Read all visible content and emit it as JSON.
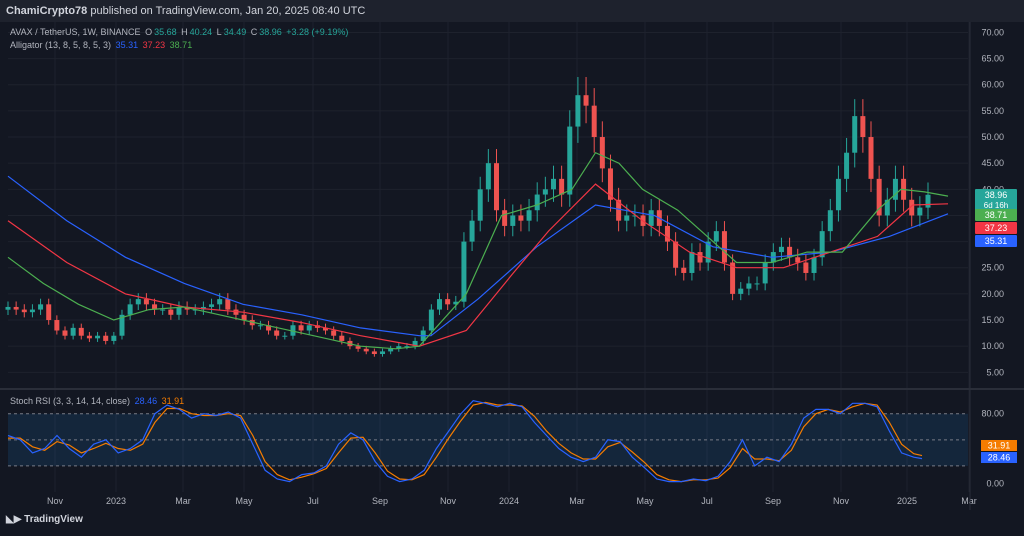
{
  "header": {
    "author": "ChamiCrypto78",
    "published_text": "published on TradingView.com, Jan 20, 2025 08:40 UTC"
  },
  "symbol_line": {
    "symbol": "AVAX / TetherUS, 1W, BINANCE",
    "open_label": "O",
    "open": "35.68",
    "high_label": "H",
    "high": "40.24",
    "low_label": "L",
    "low": "34.49",
    "close_label": "C",
    "close": "38.96",
    "change": "+3.28 (+9.19%)"
  },
  "alligator": {
    "label": "Alligator (13, 8, 5, 8, 5, 3)",
    "jaw": "35.31",
    "teeth": "37.23",
    "lips": "38.71"
  },
  "stoch": {
    "label": "Stoch RSI (3, 3, 14, 14, close)",
    "k": "28.46",
    "d": "31.91"
  },
  "footer": {
    "brand": "TradingView"
  },
  "colors": {
    "up": "#26a69a",
    "down": "#ef5350",
    "jaw": "#2962ff",
    "teeth": "#f23645",
    "lips": "#4caf50",
    "k": "#2962ff",
    "d": "#f57c00",
    "bg": "#131722"
  },
  "chart_data": [
    {
      "type": "candlestick",
      "title": "AVAX / TetherUS, 1W, BINANCE",
      "x_ticks": [
        "Nov",
        "2023",
        "Mar",
        "May",
        "Jul",
        "Sep",
        "Nov",
        "2024",
        "Mar",
        "May",
        "Jul",
        "Sep",
        "Nov",
        "2025",
        "Mar"
      ],
      "y_ticks": [
        "70.00",
        "65.00",
        "60.00",
        "55.00",
        "50.00",
        "45.00",
        "40.00",
        "35.00",
        "30.00",
        "25.00",
        "20.00",
        "15.00",
        "10.00",
        "5.00"
      ],
      "ylim": [
        2,
        72
      ],
      "price_labels": [
        {
          "text": "38.96",
          "sub": "6d 16h",
          "color": "#26a69a"
        },
        {
          "text": "38.71",
          "color": "#4caf50"
        },
        {
          "text": "37.23",
          "color": "#f23645"
        },
        {
          "text": "35.31",
          "color": "#2962ff"
        }
      ],
      "closes": [
        17.5,
        17,
        16.5,
        17,
        18,
        15,
        13,
        12,
        13.5,
        12,
        11.5,
        12,
        11,
        12,
        16,
        18,
        19,
        18,
        17,
        17,
        16,
        17.5,
        17,
        17,
        17.5,
        18,
        19,
        17,
        16,
        15,
        14,
        14,
        13,
        12,
        12,
        14,
        13,
        14,
        13.5,
        13,
        12,
        11,
        10,
        9.5,
        9,
        8.5,
        9,
        9.5,
        10,
        10,
        11,
        13,
        17,
        19,
        18,
        18.5,
        30,
        34,
        40,
        45,
        36,
        33,
        35,
        34,
        36,
        39,
        40,
        42,
        39,
        52,
        58,
        56,
        50,
        44,
        38,
        34,
        35,
        35,
        33,
        36,
        33,
        30,
        25,
        24,
        28,
        26,
        30,
        32,
        26,
        20,
        21,
        22,
        22,
        26,
        28,
        29,
        27,
        26,
        24,
        27,
        32,
        36,
        42,
        47,
        54,
        50,
        42,
        35,
        38,
        42,
        38,
        35,
        36.5,
        38.96
      ],
      "jaw": [
        [
          0,
          42.5
        ],
        [
          10,
          34
        ],
        [
          20,
          27
        ],
        [
          30,
          22
        ],
        [
          40,
          18
        ],
        [
          50,
          16
        ],
        [
          60,
          13.5
        ],
        [
          70,
          12
        ],
        [
          72,
          12
        ],
        [
          80,
          19
        ],
        [
          90,
          29
        ],
        [
          100,
          37
        ],
        [
          110,
          35
        ],
        [
          120,
          29
        ],
        [
          130,
          27
        ],
        [
          140,
          28
        ],
        [
          150,
          31
        ],
        [
          160,
          35.31
        ]
      ],
      "teeth": [
        [
          0,
          34
        ],
        [
          10,
          26
        ],
        [
          20,
          20
        ],
        [
          30,
          17.5
        ],
        [
          40,
          16.5
        ],
        [
          50,
          14.5
        ],
        [
          60,
          12
        ],
        [
          70,
          10
        ],
        [
          78,
          13
        ],
        [
          86,
          24
        ],
        [
          92,
          32
        ],
        [
          100,
          41
        ],
        [
          108,
          34
        ],
        [
          116,
          28
        ],
        [
          124,
          25
        ],
        [
          132,
          25
        ],
        [
          140,
          28
        ],
        [
          148,
          31
        ],
        [
          154,
          37
        ],
        [
          160,
          37.23
        ]
      ],
      "lips": [
        [
          0,
          27
        ],
        [
          6,
          22
        ],
        [
          12,
          18
        ],
        [
          18,
          15
        ],
        [
          24,
          17
        ],
        [
          30,
          17.5
        ],
        [
          36,
          16
        ],
        [
          44,
          14
        ],
        [
          52,
          12
        ],
        [
          60,
          10
        ],
        [
          66,
          9.5
        ],
        [
          70,
          10
        ],
        [
          78,
          20
        ],
        [
          84,
          35
        ],
        [
          90,
          37
        ],
        [
          96,
          40
        ],
        [
          100,
          47
        ],
        [
          104,
          45
        ],
        [
          108,
          40
        ],
        [
          114,
          36
        ],
        [
          120,
          30
        ],
        [
          124,
          26
        ],
        [
          130,
          26
        ],
        [
          136,
          28
        ],
        [
          142,
          28
        ],
        [
          148,
          36
        ],
        [
          152,
          40
        ],
        [
          156,
          39.5
        ],
        [
          160,
          38.71
        ]
      ]
    },
    {
      "type": "line",
      "title": "Stoch RSI (3, 3, 14, 14, close)",
      "y_ticks": [
        "80.00",
        "0.00"
      ],
      "ylim": [
        -10,
        105
      ],
      "band": [
        20,
        80
      ],
      "series": [
        {
          "name": "K",
          "values": [
            [
              0,
              55
            ],
            [
              3,
              50
            ],
            [
              6,
              35
            ],
            [
              9,
              40
            ],
            [
              12,
              55
            ],
            [
              15,
              40
            ],
            [
              18,
              30
            ],
            [
              21,
              45
            ],
            [
              24,
              50
            ],
            [
              27,
              35
            ],
            [
              30,
              40
            ],
            [
              33,
              50
            ],
            [
              36,
              80
            ],
            [
              39,
              90
            ],
            [
              42,
              85
            ],
            [
              45,
              75
            ],
            [
              48,
              80
            ],
            [
              51,
              78
            ],
            [
              54,
              82
            ],
            [
              57,
              75
            ],
            [
              60,
              45
            ],
            [
              63,
              15
            ],
            [
              66,
              5
            ],
            [
              69,
              2
            ],
            [
              72,
              10
            ],
            [
              75,
              12
            ],
            [
              78,
              20
            ],
            [
              81,
              45
            ],
            [
              84,
              58
            ],
            [
              87,
              50
            ],
            [
              90,
              25
            ],
            [
              93,
              8
            ],
            [
              96,
              2
            ],
            [
              99,
              5
            ],
            [
              102,
              15
            ],
            [
              105,
              40
            ],
            [
              108,
              60
            ],
            [
              111,
              80
            ],
            [
              114,
              95
            ],
            [
              117,
              92
            ],
            [
              120,
              88
            ],
            [
              123,
              92
            ],
            [
              126,
              88
            ],
            [
              129,
              70
            ],
            [
              132,
              55
            ],
            [
              135,
              40
            ],
            [
              138,
              30
            ],
            [
              141,
              25
            ],
            [
              144,
              30
            ],
            [
              147,
              50
            ],
            [
              150,
              48
            ],
            [
              153,
              30
            ],
            [
              156,
              18
            ],
            [
              159,
              5
            ],
            [
              162,
              2
            ],
            [
              165,
              2
            ],
            [
              168,
              5
            ],
            [
              171,
              3
            ],
            [
              174,
              8
            ],
            [
              177,
              25
            ],
            [
              180,
              50
            ],
            [
              183,
              20
            ],
            [
              186,
              30
            ],
            [
              189,
              25
            ],
            [
              192,
              45
            ],
            [
              195,
              75
            ],
            [
              198,
              85
            ],
            [
              201,
              85
            ],
            [
              204,
              80
            ],
            [
              207,
              92
            ],
            [
              210,
              92
            ],
            [
              213,
              88
            ],
            [
              216,
              60
            ],
            [
              219,
              35
            ],
            [
              222,
              30
            ],
            [
              224,
              28.46
            ]
          ]
        },
        {
          "name": "D",
          "values": [
            [
              0,
              52
            ],
            [
              3,
              52
            ],
            [
              6,
              42
            ],
            [
              9,
              38
            ],
            [
              12,
              48
            ],
            [
              15,
              44
            ],
            [
              18,
              35
            ],
            [
              21,
              40
            ],
            [
              24,
              46
            ],
            [
              27,
              40
            ],
            [
              30,
              38
            ],
            [
              33,
              45
            ],
            [
              36,
              70
            ],
            [
              39,
              86
            ],
            [
              42,
              86
            ],
            [
              45,
              80
            ],
            [
              48,
              78
            ],
            [
              51,
              78
            ],
            [
              54,
              80
            ],
            [
              57,
              78
            ],
            [
              60,
              55
            ],
            [
              63,
              25
            ],
            [
              66,
              10
            ],
            [
              69,
              4
            ],
            [
              72,
              7
            ],
            [
              75,
              11
            ],
            [
              78,
              17
            ],
            [
              81,
              35
            ],
            [
              84,
              52
            ],
            [
              87,
              53
            ],
            [
              90,
              35
            ],
            [
              93,
              14
            ],
            [
              96,
              5
            ],
            [
              99,
              4
            ],
            [
              102,
              10
            ],
            [
              105,
              30
            ],
            [
              108,
              52
            ],
            [
              111,
              72
            ],
            [
              114,
              90
            ],
            [
              117,
              93
            ],
            [
              120,
              90
            ],
            [
              123,
              90
            ],
            [
              126,
              89
            ],
            [
              129,
              77
            ],
            [
              132,
              60
            ],
            [
              135,
              46
            ],
            [
              138,
              35
            ],
            [
              141,
              28
            ],
            [
              144,
              28
            ],
            [
              147,
              42
            ],
            [
              150,
              47
            ],
            [
              153,
              36
            ],
            [
              156,
              24
            ],
            [
              159,
              10
            ],
            [
              162,
              4
            ],
            [
              165,
              2
            ],
            [
              168,
              4
            ],
            [
              171,
              4
            ],
            [
              174,
              6
            ],
            [
              177,
              18
            ],
            [
              180,
              40
            ],
            [
              183,
              28
            ],
            [
              186,
              28
            ],
            [
              189,
              26
            ],
            [
              192,
              38
            ],
            [
              195,
              65
            ],
            [
              198,
              80
            ],
            [
              201,
              85
            ],
            [
              204,
              82
            ],
            [
              207,
              88
            ],
            [
              210,
              92
            ],
            [
              213,
              90
            ],
            [
              216,
              70
            ],
            [
              219,
              45
            ],
            [
              222,
              34
            ],
            [
              224,
              31.91
            ]
          ]
        }
      ]
    }
  ]
}
